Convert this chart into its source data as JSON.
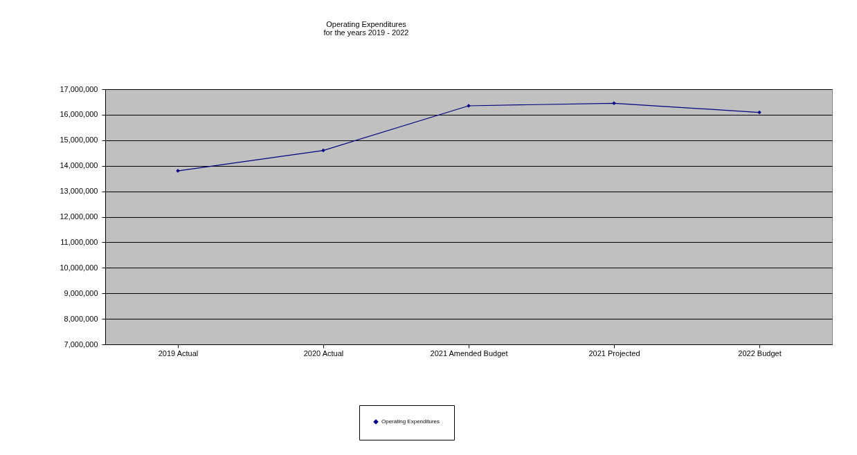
{
  "chart_data": {
    "type": "line",
    "title": "Operating Expenditures",
    "subtitle": "for the years 2019 - 2022",
    "categories": [
      "2019 Actual",
      "2020 Actual",
      "2021 Amended Budget",
      "2021 Projected",
      "2022 Budget"
    ],
    "series": [
      {
        "name": "Operating Expenditures",
        "color": "#000080",
        "values": [
          13800000,
          14600000,
          16350000,
          16450000,
          16090000
        ]
      }
    ],
    "ylim": [
      7000000,
      17000000
    ],
    "yticks": [
      {
        "value": 7000000,
        "label": "7,000,000"
      },
      {
        "value": 8000000,
        "label": "8,000,000"
      },
      {
        "value": 9000000,
        "label": "9,000,000"
      },
      {
        "value": 10000000,
        "label": "10,000,000"
      },
      {
        "value": 11000000,
        "label": "11,000,000"
      },
      {
        "value": 12000000,
        "label": "12,000,000"
      },
      {
        "value": 13000000,
        "label": "13,000,000"
      },
      {
        "value": 14000000,
        "label": "14,000,000"
      },
      {
        "value": 15000000,
        "label": "15,000,000"
      },
      {
        "value": 16000000,
        "label": "16,000,000"
      },
      {
        "value": 17000000,
        "label": "17,000,000"
      }
    ],
    "grid": "y",
    "legend": "bottom",
    "marker": "diamond",
    "line_style": "solid"
  }
}
